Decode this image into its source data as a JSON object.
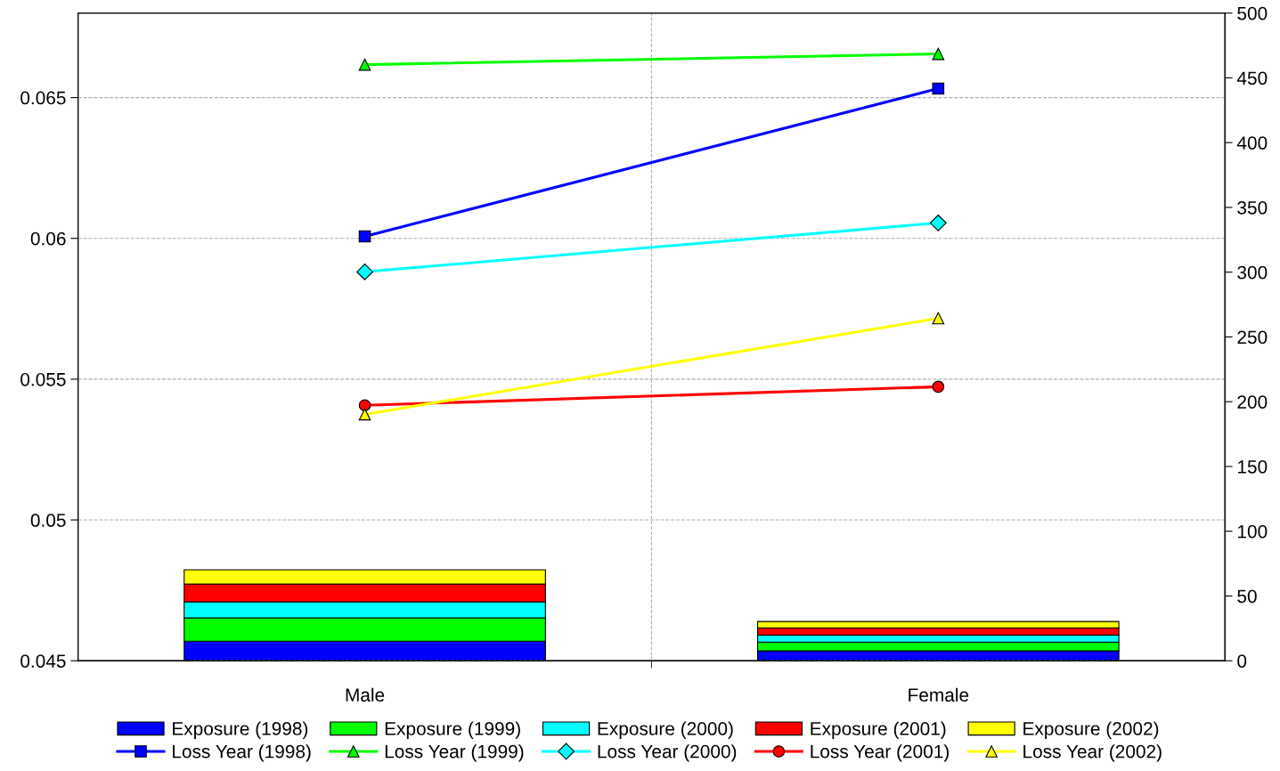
{
  "chart_data": {
    "type": "line",
    "categories": [
      "Male",
      "Female"
    ],
    "series": [
      {
        "name": "Exposure (1998)",
        "type": "bar",
        "axis": "y2",
        "color": "#0000ff",
        "values": [
          15.1,
          7.6
        ]
      },
      {
        "name": "Exposure (1999)",
        "type": "bar",
        "axis": "y2",
        "color": "#00ff00",
        "values": [
          18,
          6.8
        ]
      },
      {
        "name": "Exposure (2000)",
        "type": "bar",
        "axis": "y2",
        "color": "#00ffff",
        "values": [
          12.4,
          5.5
        ]
      },
      {
        "name": "Exposure (2001)",
        "type": "bar",
        "axis": "y2",
        "color": "#ff0000",
        "values": [
          13.7,
          5.5
        ]
      },
      {
        "name": "Exposure (2002)",
        "type": "bar",
        "axis": "y2",
        "color": "#ffff00",
        "values": [
          11,
          4.9
        ]
      },
      {
        "name": "Loss Year (1998)",
        "color": "#0000ff",
        "marker": "square",
        "values": [
          0.06007,
          0.06532
        ]
      },
      {
        "name": "Loss Year (1999)",
        "color": "#00ff00",
        "marker": "triangle",
        "values": [
          0.06617,
          0.06655
        ]
      },
      {
        "name": "Loss Year (2000)",
        "color": "#00ffff",
        "marker": "diamond",
        "values": [
          0.05881,
          0.06055
        ]
      },
      {
        "name": "Loss Year (2001)",
        "color": "#ff0000",
        "marker": "circle",
        "values": [
          0.05407,
          0.05473
        ]
      },
      {
        "name": "Loss Year (2002)",
        "color": "#ffff00",
        "marker": "triangle",
        "values": [
          0.05375,
          0.05716
        ]
      }
    ],
    "stacked": true,
    "ylim": [
      0.045,
      0.068
    ],
    "yticks": [
      0.045,
      0.05,
      0.055,
      0.06,
      0.065
    ],
    "y2lim": [
      0,
      500
    ],
    "y2ticks": [
      0,
      50,
      100,
      150,
      200,
      250,
      300,
      350,
      400,
      450,
      500
    ],
    "grid": true,
    "legend": "bottom",
    "line_style": "solid"
  }
}
